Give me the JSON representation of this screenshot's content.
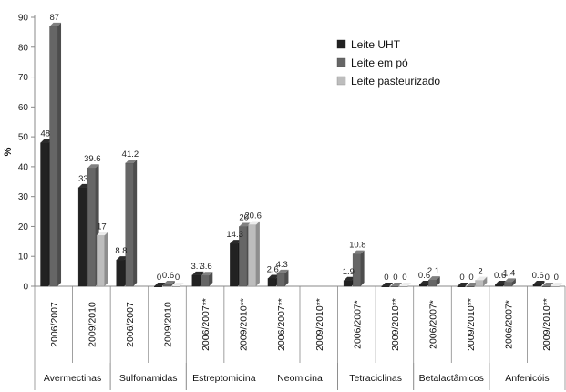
{
  "chart_data": {
    "type": "bar",
    "ylabel": "%",
    "ylim": [
      0,
      90
    ],
    "yticks": [
      0,
      10,
      20,
      30,
      40,
      50,
      60,
      70,
      80,
      90
    ],
    "grid": false,
    "legend_position": "top-right",
    "categories": [
      "2006/2007",
      "2009/2010",
      "2006/2007",
      "2009/2010",
      "2006/2007**",
      "2009/2010**",
      "2006/2007**",
      "2009/2010**",
      "2006/2007*",
      "2009/2010**",
      "2006/2007*",
      "2009/2010**",
      "2006/2007*",
      "2009/2010**"
    ],
    "groups": [
      {
        "label": "Avermectinas",
        "span": [
          0,
          1
        ]
      },
      {
        "label": "Sulfonamidas",
        "span": [
          2,
          3
        ]
      },
      {
        "label": "Estreptomicina",
        "span": [
          4,
          5
        ]
      },
      {
        "label": "Neomicina",
        "span": [
          6,
          7
        ]
      },
      {
        "label": "Tetraciclinas",
        "span": [
          8,
          9
        ]
      },
      {
        "label": "Betalactâmicos",
        "span": [
          10,
          11
        ]
      },
      {
        "label": "Anfenicóis",
        "span": [
          12,
          13
        ]
      }
    ],
    "series": [
      {
        "name": "Leite UHT",
        "color": "#222222",
        "values": [
          48,
          33,
          8.8,
          0,
          3.7,
          14.3,
          2.6,
          null,
          1.9,
          0,
          0.6,
          0,
          0.6,
          0.6
        ],
        "labels": [
          "48",
          "33",
          "8.8",
          "0",
          "3.7",
          "14.3",
          "2.6",
          "",
          "1.9",
          "0",
          "0.6",
          "0",
          "0.6",
          "0.6"
        ]
      },
      {
        "name": "Leite em pó",
        "color": "#666666",
        "values": [
          87,
          39.6,
          41.2,
          0.6,
          3.6,
          20,
          4.3,
          null,
          10.8,
          0,
          2.1,
          0,
          1.4,
          0
        ],
        "labels": [
          "87",
          "39.6",
          "41.2",
          "0.6",
          "3.6",
          "20",
          "4.3",
          "",
          "10.8",
          "0",
          "2.1",
          "0",
          "1.4",
          "0"
        ]
      },
      {
        "name": "Leite pasteurizado",
        "color": "#bdbdbd",
        "values": [
          null,
          17,
          null,
          0,
          null,
          20.6,
          null,
          null,
          null,
          0,
          null,
          2,
          null,
          0
        ],
        "labels": [
          "",
          "17",
          "",
          "0",
          "",
          "20.6",
          "",
          "",
          "",
          "0",
          "",
          "2",
          "",
          "0"
        ]
      }
    ]
  }
}
